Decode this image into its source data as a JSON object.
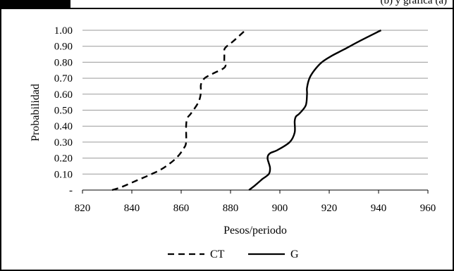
{
  "header": {
    "partial_text": "(b) y grafica (a)"
  },
  "chart_data": {
    "type": "line",
    "title": "",
    "xlabel": "Pesos/periodo",
    "ylabel": "Probabilidad",
    "xlim": [
      820,
      960
    ],
    "ylim": [
      0,
      1.0
    ],
    "xticks": [
      820,
      840,
      860,
      880,
      900,
      920,
      940,
      960
    ],
    "xtick_labels": [
      "820",
      "840",
      "860",
      "880",
      "900",
      "920",
      "940",
      "960"
    ],
    "yticks": [
      0,
      0.1,
      0.2,
      0.3,
      0.4,
      0.5,
      0.6,
      0.7,
      0.8,
      0.9,
      1.0
    ],
    "ytick_labels": [
      "-",
      "0.10",
      "0.20",
      "0.30",
      "0.40",
      "0.50",
      "0.60",
      "0.70",
      "0.80",
      "0.90",
      "1.00"
    ],
    "grid": true,
    "legend_position": "bottom-center",
    "series": [
      {
        "name": "CT",
        "style": "dashed",
        "color": "#000000",
        "points": [
          [
            832,
            0.0
          ],
          [
            836,
            0.02
          ],
          [
            842,
            0.06
          ],
          [
            848,
            0.1
          ],
          [
            853,
            0.14
          ],
          [
            858,
            0.2
          ],
          [
            861,
            0.26
          ],
          [
            862,
            0.3
          ],
          [
            862,
            0.4
          ],
          [
            862.5,
            0.45
          ],
          [
            864,
            0.48
          ],
          [
            867,
            0.55
          ],
          [
            868,
            0.61
          ],
          [
            868,
            0.66
          ],
          [
            869.5,
            0.7
          ],
          [
            873,
            0.73
          ],
          [
            877,
            0.76
          ],
          [
            878,
            0.78
          ],
          [
            877.5,
            0.8
          ],
          [
            877.5,
            0.84
          ],
          [
            877.5,
            0.88
          ],
          [
            878.5,
            0.9
          ],
          [
            881,
            0.93
          ],
          [
            886,
            1.0
          ]
        ]
      },
      {
        "name": "G",
        "style": "solid",
        "color": "#000000",
        "points": [
          [
            887.5,
            0.0
          ],
          [
            890,
            0.03
          ],
          [
            893,
            0.07
          ],
          [
            895.5,
            0.1
          ],
          [
            896,
            0.14
          ],
          [
            895,
            0.2
          ],
          [
            896,
            0.23
          ],
          [
            899,
            0.25
          ],
          [
            904,
            0.3
          ],
          [
            906,
            0.36
          ],
          [
            906,
            0.43
          ],
          [
            906.5,
            0.46
          ],
          [
            908,
            0.48
          ],
          [
            910.5,
            0.53
          ],
          [
            911,
            0.6
          ],
          [
            911,
            0.64
          ],
          [
            912,
            0.7
          ],
          [
            914,
            0.75
          ],
          [
            917,
            0.8
          ],
          [
            921,
            0.84
          ],
          [
            926,
            0.88
          ],
          [
            932,
            0.93
          ],
          [
            941,
            1.0
          ]
        ]
      }
    ]
  }
}
